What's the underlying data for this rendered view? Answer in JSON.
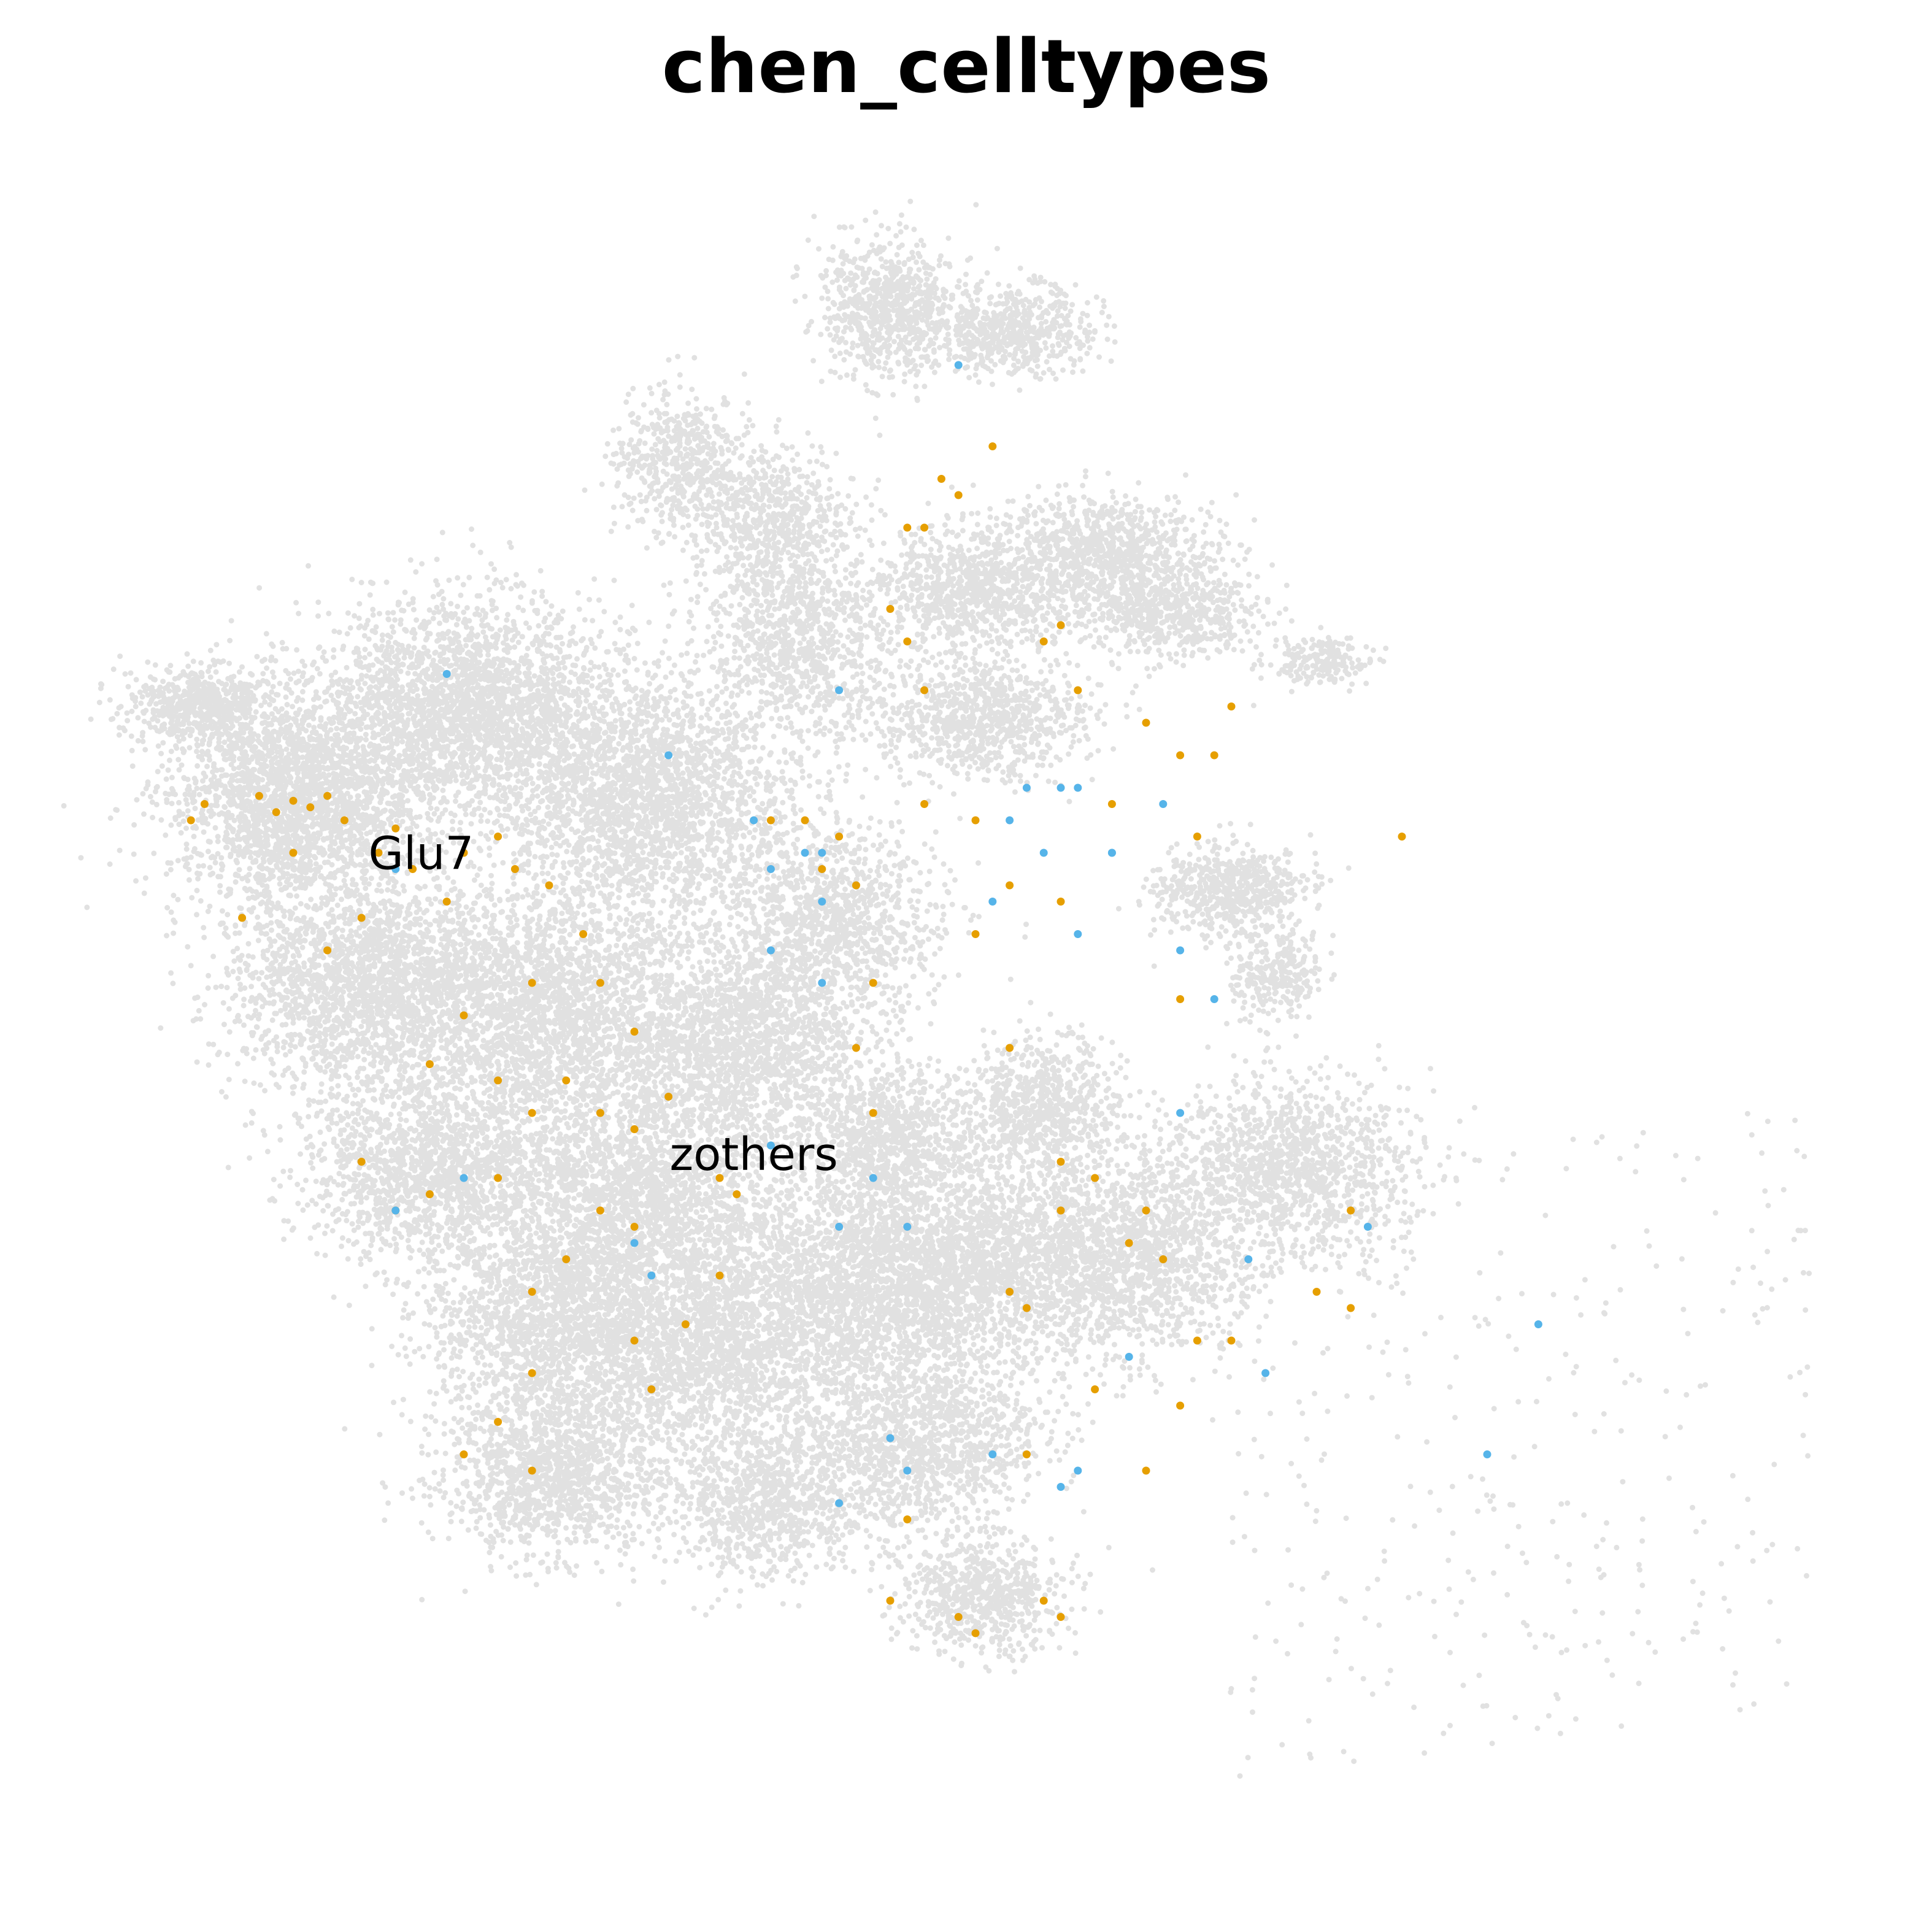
{
  "chart_data": {
    "type": "scatter",
    "title": "chen_celltypes",
    "xlabel": "",
    "ylabel": "",
    "axes_visible": false,
    "grid": false,
    "legend": "none",
    "cluster_labels": [
      {
        "text": "Glu7",
        "x": 0.175,
        "y": 0.59
      },
      {
        "text": "zothers",
        "x": 0.37,
        "y": 0.405
      }
    ],
    "colors": {
      "background_cells": "#e1e1e1",
      "orange_cells": "#e69f00",
      "blue_cells": "#56b4e9"
    },
    "series": [
      {
        "color": "#e69f00",
        "points": [
          [
            0.048,
            0.63
          ],
          [
            0.08,
            0.635
          ],
          [
            0.09,
            0.625
          ],
          [
            0.1,
            0.632
          ],
          [
            0.11,
            0.628
          ],
          [
            0.12,
            0.635
          ],
          [
            0.13,
            0.62
          ],
          [
            0.1,
            0.6
          ],
          [
            0.04,
            0.62
          ],
          [
            0.16,
            0.615
          ],
          [
            0.2,
            0.6
          ],
          [
            0.22,
            0.61
          ],
          [
            0.23,
            0.59
          ],
          [
            0.25,
            0.58
          ],
          [
            0.19,
            0.57
          ],
          [
            0.17,
            0.59
          ],
          [
            0.15,
            0.6
          ],
          [
            0.27,
            0.55
          ],
          [
            0.14,
            0.56
          ],
          [
            0.07,
            0.56
          ],
          [
            0.12,
            0.54
          ],
          [
            0.2,
            0.5
          ],
          [
            0.24,
            0.52
          ],
          [
            0.28,
            0.52
          ],
          [
            0.3,
            0.49
          ],
          [
            0.26,
            0.46
          ],
          [
            0.22,
            0.46
          ],
          [
            0.18,
            0.47
          ],
          [
            0.24,
            0.44
          ],
          [
            0.28,
            0.44
          ],
          [
            0.3,
            0.43
          ],
          [
            0.28,
            0.38
          ],
          [
            0.3,
            0.37
          ],
          [
            0.22,
            0.4
          ],
          [
            0.18,
            0.39
          ],
          [
            0.14,
            0.41
          ],
          [
            0.16,
            0.38
          ],
          [
            0.26,
            0.35
          ],
          [
            0.24,
            0.33
          ],
          [
            0.3,
            0.3
          ],
          [
            0.24,
            0.28
          ],
          [
            0.22,
            0.25
          ],
          [
            0.24,
            0.22
          ],
          [
            0.2,
            0.23
          ],
          [
            0.31,
            0.27
          ],
          [
            0.35,
            0.34
          ],
          [
            0.33,
            0.31
          ],
          [
            0.35,
            0.4
          ],
          [
            0.32,
            0.45
          ],
          [
            0.36,
            0.39
          ],
          [
            0.42,
            0.61
          ],
          [
            0.41,
            0.59
          ],
          [
            0.4,
            0.62
          ],
          [
            0.38,
            0.62
          ],
          [
            0.43,
            0.58
          ],
          [
            0.45,
            0.75
          ],
          [
            0.46,
            0.73
          ],
          [
            0.47,
            0.8
          ],
          [
            0.48,
            0.83
          ],
          [
            0.49,
            0.82
          ],
          [
            0.51,
            0.85
          ],
          [
            0.54,
            0.73
          ],
          [
            0.55,
            0.74
          ],
          [
            0.56,
            0.7
          ],
          [
            0.6,
            0.68
          ],
          [
            0.62,
            0.66
          ],
          [
            0.64,
            0.66
          ],
          [
            0.65,
            0.69
          ],
          [
            0.63,
            0.61
          ],
          [
            0.58,
            0.63
          ],
          [
            0.55,
            0.57
          ],
          [
            0.52,
            0.58
          ],
          [
            0.5,
            0.62
          ],
          [
            0.47,
            0.63
          ],
          [
            0.44,
            0.44
          ],
          [
            0.43,
            0.48
          ],
          [
            0.53,
            0.32
          ],
          [
            0.52,
            0.33
          ],
          [
            0.55,
            0.38
          ],
          [
            0.6,
            0.38
          ],
          [
            0.61,
            0.35
          ],
          [
            0.59,
            0.36
          ],
          [
            0.62,
            0.26
          ],
          [
            0.63,
            0.3
          ],
          [
            0.65,
            0.3
          ],
          [
            0.7,
            0.33
          ],
          [
            0.72,
            0.38
          ],
          [
            0.72,
            0.32
          ],
          [
            0.6,
            0.22
          ],
          [
            0.57,
            0.27
          ],
          [
            0.53,
            0.23
          ],
          [
            0.46,
            0.19
          ],
          [
            0.45,
            0.14
          ],
          [
            0.49,
            0.13
          ],
          [
            0.5,
            0.12
          ],
          [
            0.62,
            0.51
          ],
          [
            0.57,
            0.4
          ],
          [
            0.55,
            0.41
          ],
          [
            0.75,
            0.61
          ],
          [
            0.46,
            0.8
          ],
          [
            0.47,
            0.7
          ],
          [
            0.5,
            0.55
          ],
          [
            0.52,
            0.48
          ],
          [
            0.44,
            0.52
          ],
          [
            0.54,
            0.14
          ],
          [
            0.55,
            0.13
          ]
        ]
      },
      {
        "color": "#56b4e9",
        "points": [
          [
            0.19,
            0.71
          ],
          [
            0.16,
            0.59
          ],
          [
            0.32,
            0.66
          ],
          [
            0.37,
            0.62
          ],
          [
            0.4,
            0.6
          ],
          [
            0.38,
            0.59
          ],
          [
            0.41,
            0.6
          ],
          [
            0.41,
            0.57
          ],
          [
            0.38,
            0.54
          ],
          [
            0.42,
            0.7
          ],
          [
            0.41,
            0.52
          ],
          [
            0.51,
            0.57
          ],
          [
            0.52,
            0.62
          ],
          [
            0.53,
            0.64
          ],
          [
            0.56,
            0.64
          ],
          [
            0.58,
            0.6
          ],
          [
            0.61,
            0.63
          ],
          [
            0.54,
            0.6
          ],
          [
            0.62,
            0.54
          ],
          [
            0.64,
            0.51
          ],
          [
            0.55,
            0.64
          ],
          [
            0.58,
            0.6
          ],
          [
            0.56,
            0.55
          ],
          [
            0.62,
            0.44
          ],
          [
            0.66,
            0.35
          ],
          [
            0.3,
            0.36
          ],
          [
            0.44,
            0.4
          ],
          [
            0.46,
            0.37
          ],
          [
            0.42,
            0.37
          ],
          [
            0.31,
            0.34
          ],
          [
            0.2,
            0.4
          ],
          [
            0.16,
            0.38
          ],
          [
            0.73,
            0.37
          ],
          [
            0.83,
            0.31
          ],
          [
            0.8,
            0.23
          ],
          [
            0.67,
            0.28
          ],
          [
            0.59,
            0.29
          ],
          [
            0.45,
            0.24
          ],
          [
            0.46,
            0.22
          ],
          [
            0.42,
            0.2
          ],
          [
            0.51,
            0.23
          ],
          [
            0.56,
            0.22
          ],
          [
            0.55,
            0.21
          ],
          [
            0.49,
            0.9
          ],
          [
            0.38,
            0.42
          ]
        ]
      }
    ]
  }
}
